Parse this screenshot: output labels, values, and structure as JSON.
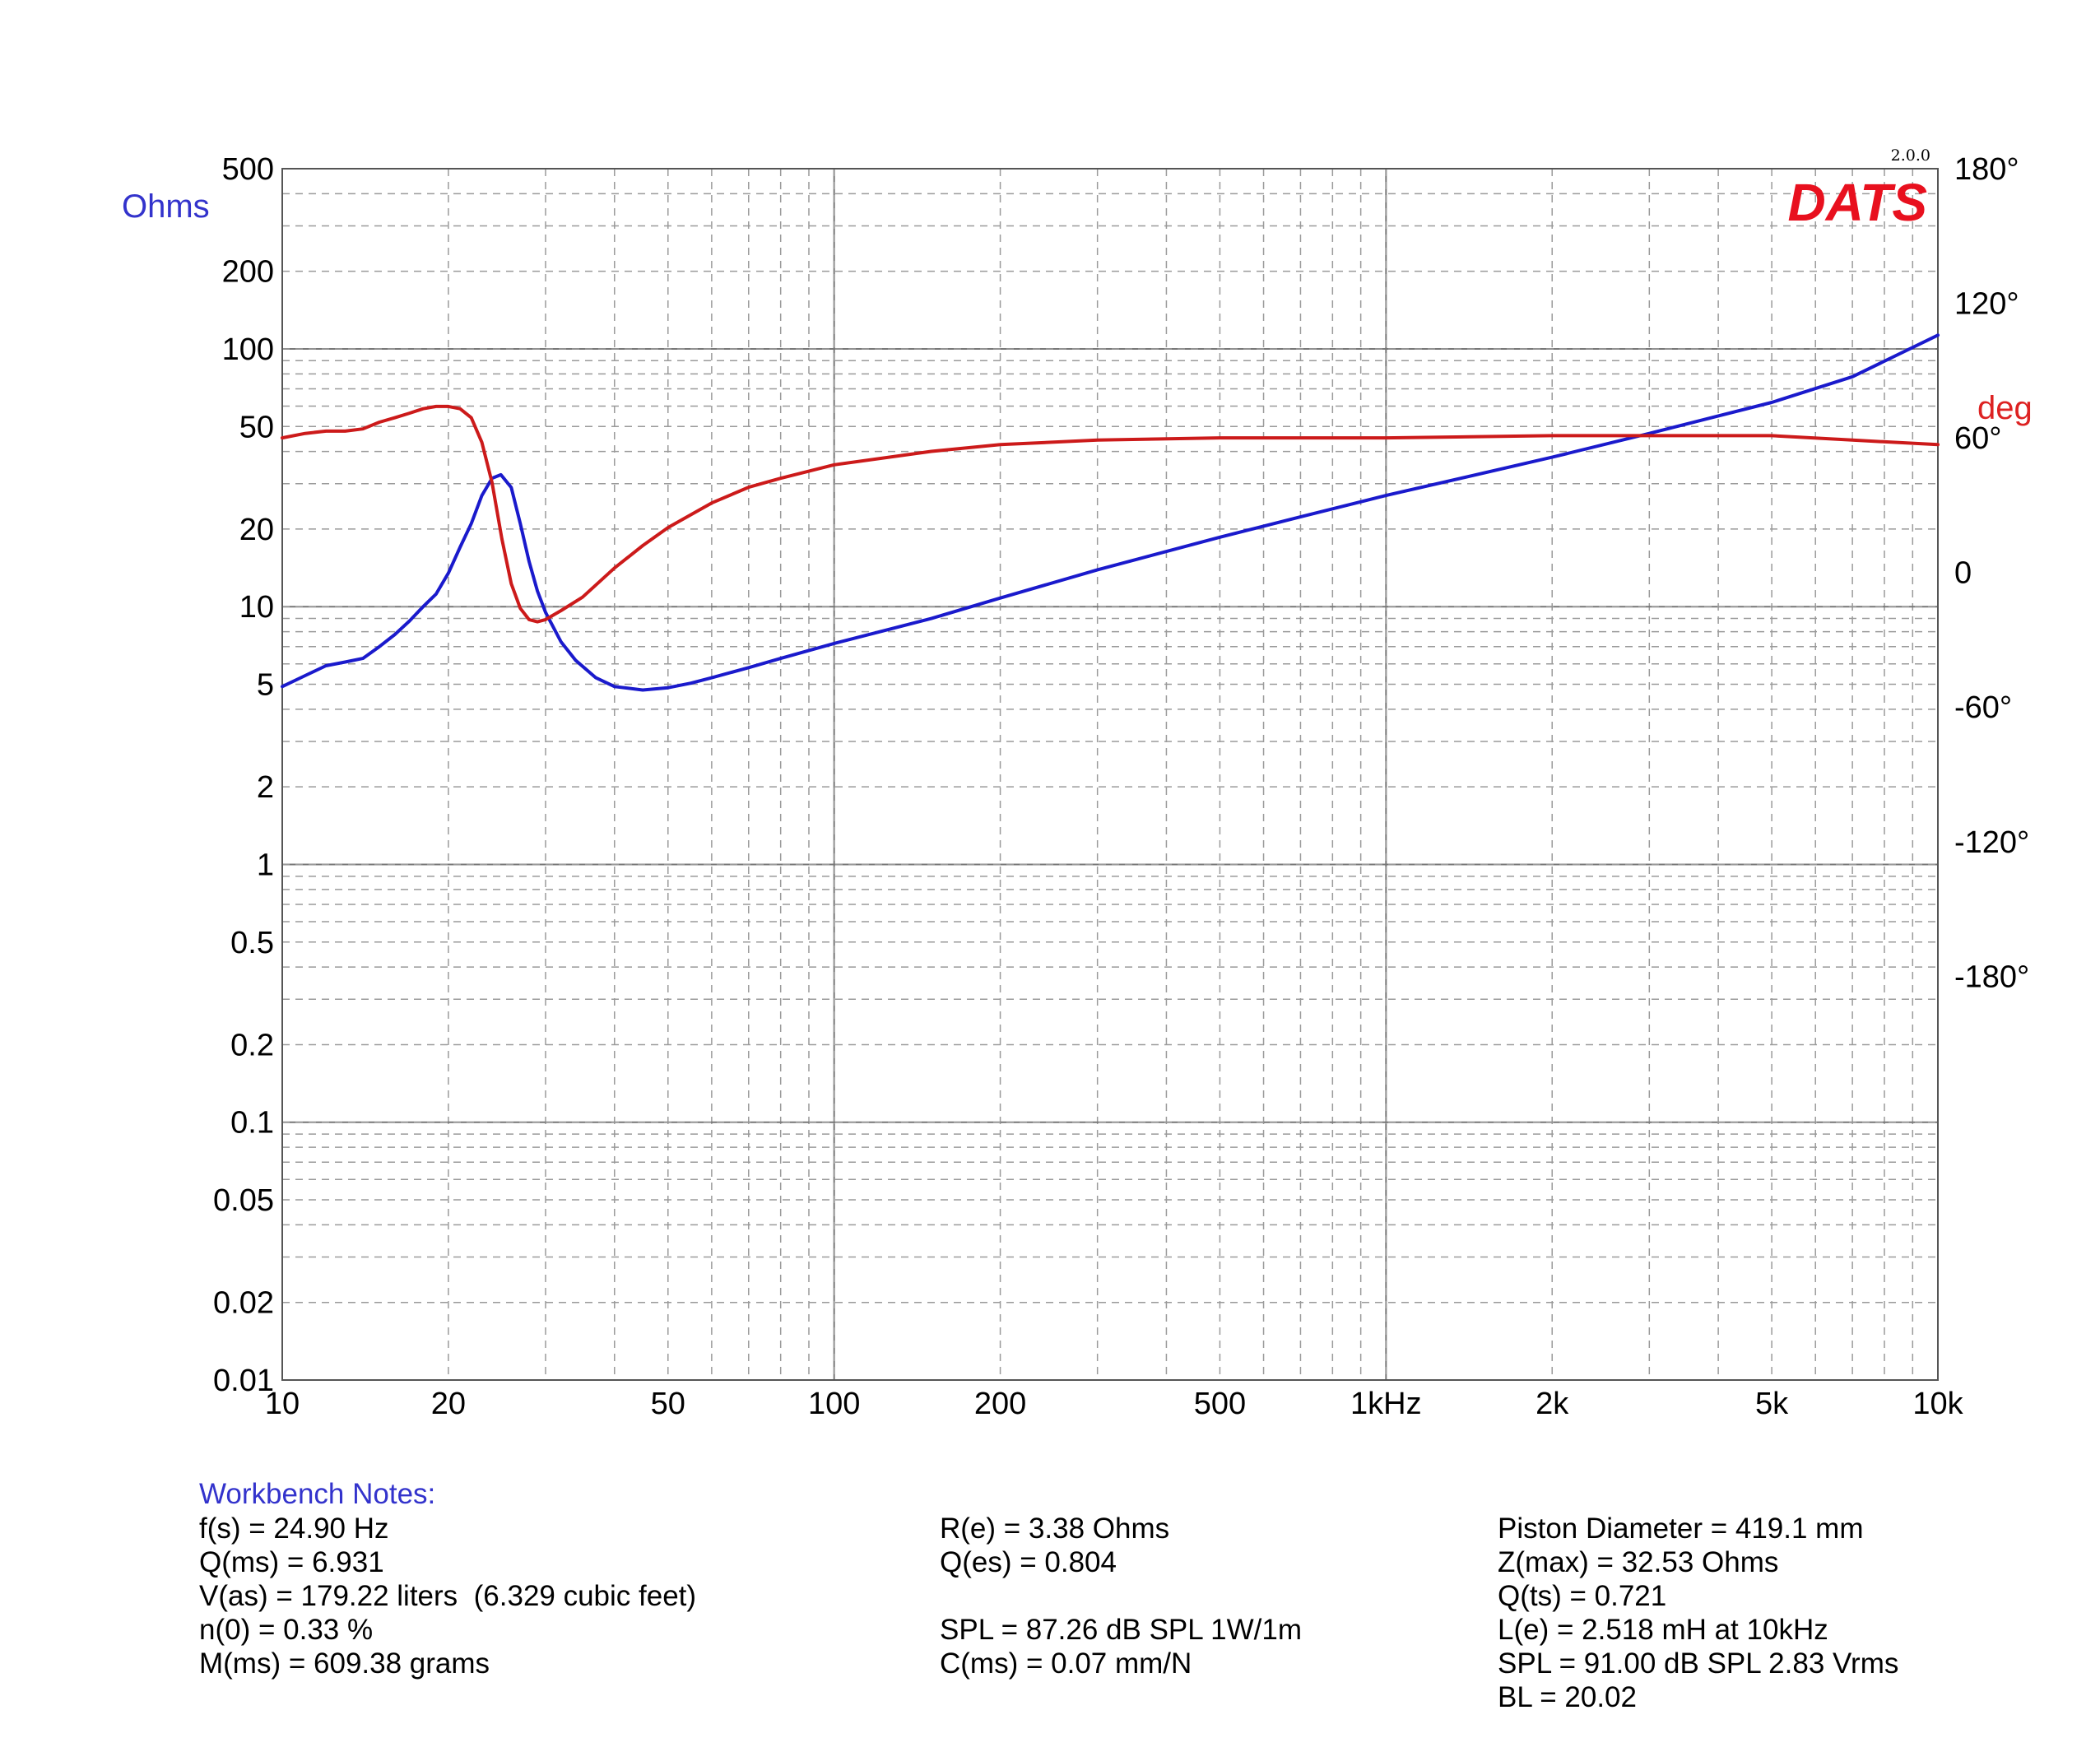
{
  "colors": {
    "impedance": "#1a1acc",
    "phase": "#cc1a1a",
    "ohms_label": "#3333cc",
    "deg_label": "#dd2222",
    "logo": "#e8101e"
  },
  "chart_data": {
    "type": "line",
    "x_scale": "log",
    "y_scale": "log",
    "xlim": [
      10,
      10000
    ],
    "ylim": [
      0.01,
      500
    ],
    "y2lim": [
      -360,
      180
    ],
    "grid": true,
    "x_ticks": [
      {
        "value": 10,
        "label": "10"
      },
      {
        "value": 20,
        "label": "20"
      },
      {
        "value": 50,
        "label": "50"
      },
      {
        "value": 100,
        "label": "100"
      },
      {
        "value": 200,
        "label": "200"
      },
      {
        "value": 500,
        "label": "500"
      },
      {
        "value": 1000,
        "label": "1kHz"
      },
      {
        "value": 2000,
        "label": "2k"
      },
      {
        "value": 5000,
        "label": "5k"
      },
      {
        "value": 10000,
        "label": "10k"
      }
    ],
    "y_ticks": [
      {
        "value": 500,
        "label": "500"
      },
      {
        "value": 200,
        "label": "200"
      },
      {
        "value": 100,
        "label": "100"
      },
      {
        "value": 50,
        "label": "50"
      },
      {
        "value": 20,
        "label": "20"
      },
      {
        "value": 10,
        "label": "10"
      },
      {
        "value": 5,
        "label": "5"
      },
      {
        "value": 2,
        "label": "2"
      },
      {
        "value": 1,
        "label": "1"
      },
      {
        "value": 0.5,
        "label": "0.5"
      },
      {
        "value": 0.2,
        "label": "0.2"
      },
      {
        "value": 0.1,
        "label": "0.1"
      },
      {
        "value": 0.05,
        "label": "0.05"
      },
      {
        "value": 0.02,
        "label": "0.02"
      },
      {
        "value": 0.01,
        "label": "0.01"
      }
    ],
    "y2_ticks": [
      {
        "value": 180,
        "label": "180°"
      },
      {
        "value": 120,
        "label": "120°"
      },
      {
        "value": 60,
        "label": "60°"
      },
      {
        "value": 0,
        "label": "0"
      },
      {
        "value": -60,
        "label": "-60°"
      },
      {
        "value": -120,
        "label": "-120°"
      },
      {
        "value": -180,
        "label": "-180°"
      }
    ],
    "ylabel": "Ohms",
    "y2label": "deg",
    "series": [
      {
        "key": "impedance",
        "axis": "left",
        "points": [
          [
            10,
            4.9
          ],
          [
            11,
            5.4
          ],
          [
            12,
            5.9
          ],
          [
            13,
            6.1
          ],
          [
            14,
            6.3
          ],
          [
            15,
            7.0
          ],
          [
            16,
            7.8
          ],
          [
            17,
            8.8
          ],
          [
            18,
            10.0
          ],
          [
            19,
            11.2
          ],
          [
            20,
            13.5
          ],
          [
            21,
            17.0
          ],
          [
            22,
            21.0
          ],
          [
            23,
            27.0
          ],
          [
            24,
            31.5
          ],
          [
            24.9,
            32.5
          ],
          [
            26,
            29.0
          ],
          [
            27,
            21.0
          ],
          [
            28,
            15.0
          ],
          [
            29,
            11.5
          ],
          [
            30,
            9.5
          ],
          [
            32,
            7.3
          ],
          [
            34,
            6.2
          ],
          [
            37,
            5.3
          ],
          [
            40,
            4.9
          ],
          [
            45,
            4.75
          ],
          [
            50,
            4.85
          ],
          [
            55,
            5.05
          ],
          [
            60,
            5.3
          ],
          [
            70,
            5.8
          ],
          [
            80,
            6.3
          ],
          [
            100,
            7.2
          ],
          [
            150,
            9.0
          ],
          [
            200,
            10.8
          ],
          [
            300,
            13.9
          ],
          [
            500,
            18.6
          ],
          [
            700,
            22.3
          ],
          [
            1000,
            27.0
          ],
          [
            2000,
            38.0
          ],
          [
            3000,
            47.0
          ],
          [
            5000,
            62.0
          ],
          [
            7000,
            78.0
          ],
          [
            10000,
            113.0
          ]
        ]
      },
      {
        "key": "phase",
        "axis": "right",
        "points": [
          [
            10,
            60
          ],
          [
            11,
            62
          ],
          [
            12,
            63
          ],
          [
            13,
            63
          ],
          [
            14,
            64
          ],
          [
            15,
            67
          ],
          [
            16,
            69
          ],
          [
            17,
            71
          ],
          [
            18,
            73
          ],
          [
            19,
            74
          ],
          [
            20,
            74
          ],
          [
            21,
            73
          ],
          [
            22,
            69
          ],
          [
            23,
            58
          ],
          [
            24,
            40
          ],
          [
            25,
            15
          ],
          [
            26,
            -5
          ],
          [
            27,
            -16
          ],
          [
            28,
            -21
          ],
          [
            29,
            -22
          ],
          [
            30,
            -21
          ],
          [
            32,
            -17
          ],
          [
            35,
            -11
          ],
          [
            40,
            2
          ],
          [
            45,
            12
          ],
          [
            50,
            20
          ],
          [
            60,
            31
          ],
          [
            70,
            38
          ],
          [
            80,
            42
          ],
          [
            100,
            48
          ],
          [
            150,
            54
          ],
          [
            200,
            57
          ],
          [
            300,
            59
          ],
          [
            500,
            60
          ],
          [
            1000,
            60
          ],
          [
            2000,
            61
          ],
          [
            3000,
            61
          ],
          [
            5000,
            61
          ],
          [
            7000,
            59
          ],
          [
            10000,
            57
          ]
        ]
      }
    ]
  },
  "logo": {
    "version": "2.0.0",
    "name": "DATS"
  },
  "notes": {
    "title": "Workbench Notes:",
    "col1": [
      "f(s) = 24.90 Hz",
      "Q(ms) = 6.931",
      "V(as) = 179.22 liters  (6.329 cubic feet)",
      "n(0) = 0.33 %",
      "M(ms) = 609.38 grams"
    ],
    "col2": [
      "R(e) = 3.38 Ohms",
      "Q(es) = 0.804",
      "",
      "SPL = 87.26 dB SPL 1W/1m",
      "C(ms) = 0.07 mm/N"
    ],
    "col3": [
      "Piston Diameter = 419.1 mm",
      "Z(max) = 32.53 Ohms",
      "Q(ts) = 0.721",
      "L(e) = 2.518 mH at 10kHz",
      "SPL = 91.00 dB SPL 2.83 Vrms",
      "BL = 20.02"
    ]
  }
}
